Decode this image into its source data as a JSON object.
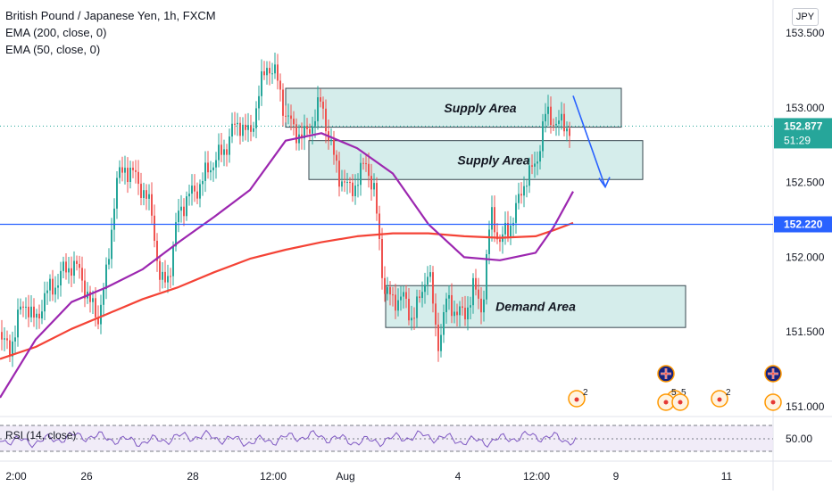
{
  "legend": {
    "title": "British Pound / Japanese Yen, 1h, FXCM",
    "ema200": "EMA (200, close, 0)",
    "ema50": "EMA (50, close, 0)"
  },
  "currency": "JPY",
  "rsi_label": "RSI (14, close)",
  "rsi_level": "50.00",
  "last_price": "152.877",
  "countdown": "51:29",
  "hline_price": "152.220",
  "colors": {
    "up": "#26a69a",
    "down": "#ef5350",
    "ema200": "#f44336",
    "ema50": "#9c27b0",
    "hline": "#2962ff",
    "zone_fill": "#b2dfdb",
    "rsi_line": "#7e57c2"
  },
  "icons": [
    "gbp-flag-icon",
    "event-count-icon"
  ],
  "chart_data": {
    "type": "candlestick",
    "title": "British Pound / Japanese Yen, 1h, FXCM",
    "ylim": [
      150.95,
      153.6
    ],
    "y_ticks": [
      "153.500",
      "153.000",
      "152.500",
      "152.000",
      "151.500",
      "151.000"
    ],
    "x_ticks": [
      "2:00",
      "26",
      "28",
      "12:00",
      "Aug",
      "4",
      "12:00",
      "9",
      "11"
    ],
    "series": [
      {
        "name": "EMA (200, close, 0)",
        "values": [
          151.32,
          151.4,
          151.52,
          151.62,
          151.72,
          151.8,
          151.9,
          151.99,
          152.05,
          152.1,
          152.14,
          152.16,
          152.16,
          152.14,
          152.13,
          152.14,
          152.18,
          152.23
        ]
      },
      {
        "name": "EMA (50, close, 0)",
        "values": [
          151.06,
          151.45,
          151.7,
          151.8,
          151.92,
          152.1,
          152.27,
          152.45,
          152.78,
          152.83,
          152.73,
          152.56,
          152.22,
          152.0,
          151.98,
          152.03,
          152.2,
          152.44
        ]
      }
    ],
    "annotations": [
      {
        "type": "zone",
        "label": "Supply Area",
        "price_top": 153.13,
        "price_bottom": 152.87
      },
      {
        "type": "zone",
        "label": "Supply Area",
        "price_top": 152.78,
        "price_bottom": 152.52
      },
      {
        "type": "zone",
        "label": "Demand Area",
        "price_top": 151.81,
        "price_bottom": 151.53
      },
      {
        "type": "hline",
        "label": "152.220",
        "price": 152.22
      },
      {
        "type": "arrow",
        "from_price": 153.08,
        "to_price": 152.47
      }
    ],
    "event_markers": [
      "2",
      "5",
      "2"
    ],
    "rsi": {
      "name": "RSI (14, close)",
      "level": 50.0
    }
  }
}
